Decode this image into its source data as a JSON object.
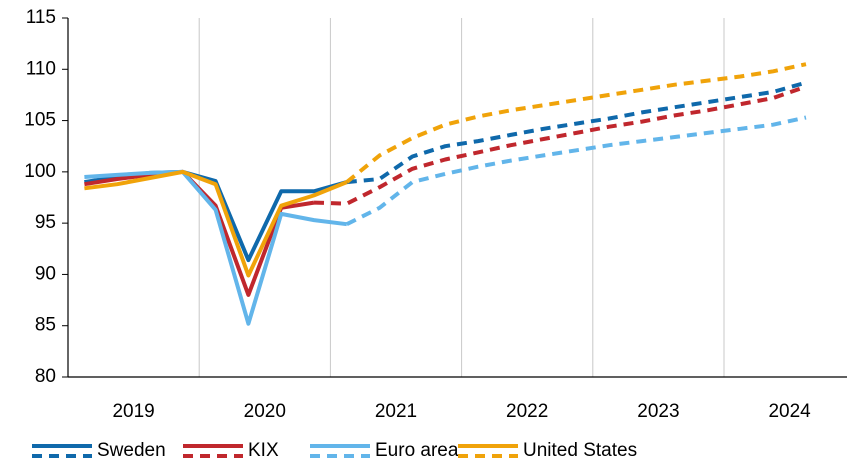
{
  "chart_data": {
    "type": "line",
    "categories": [
      null,
      null,
      null,
      null,
      null,
      null,
      null,
      null,
      null,
      null,
      null,
      null,
      null,
      null,
      null,
      null,
      null,
      null,
      null,
      null,
      null,
      null,
      null,
      null
    ],
    "year_labels": [
      "2019",
      "2020",
      "2021",
      "2022",
      "2023",
      "2024"
    ],
    "ylim": [
      80,
      115
    ],
    "yticks": [
      80,
      85,
      90,
      95,
      100,
      105,
      110,
      115
    ],
    "grid": "vertical",
    "legend": "bottom",
    "series": [
      {
        "name": "Sweden",
        "color": "#0f69ab",
        "values": [
          99.0,
          99.5,
          99.9,
          100.0,
          99.1,
          91.4,
          98.1,
          98.1,
          99.0,
          null,
          null,
          null,
          null,
          null,
          null,
          null,
          null,
          null,
          null,
          null,
          null,
          null,
          null,
          null
        ],
        "forecast": [
          null,
          null,
          null,
          null,
          null,
          null,
          null,
          null,
          99.0,
          99.3,
          101.5,
          102.5,
          103.0,
          103.6,
          104.2,
          104.7,
          105.2,
          105.8,
          106.3,
          106.8,
          107.3,
          107.8,
          108.7,
          null
        ]
      },
      {
        "name": "KIX",
        "color": "#c0272d",
        "values": [
          98.8,
          99.3,
          99.7,
          100.0,
          96.7,
          88.0,
          96.5,
          97.0,
          null,
          null,
          null,
          null,
          null,
          null,
          null,
          null,
          null,
          null,
          null,
          null,
          null,
          null,
          null,
          null
        ],
        "forecast": [
          null,
          null,
          null,
          null,
          null,
          null,
          null,
          97.0,
          96.9,
          98.5,
          100.3,
          101.2,
          101.9,
          102.6,
          103.2,
          103.8,
          104.4,
          104.9,
          105.5,
          106.0,
          106.6,
          107.2,
          108.3,
          null
        ]
      },
      {
        "name": "Euro area",
        "color": "#62b5ea",
        "values": [
          99.5,
          99.7,
          99.9,
          100.0,
          96.3,
          85.2,
          95.9,
          95.3,
          94.9,
          null,
          null,
          null,
          null,
          null,
          null,
          null,
          null,
          null,
          null,
          null,
          null,
          null,
          null,
          null
        ],
        "forecast": [
          null,
          null,
          null,
          null,
          null,
          null,
          null,
          null,
          94.9,
          96.5,
          99.0,
          99.8,
          100.5,
          101.1,
          101.6,
          102.1,
          102.6,
          103.0,
          103.4,
          103.8,
          104.2,
          104.6,
          105.3,
          null
        ]
      },
      {
        "name": "United States",
        "color": "#f0a30a",
        "values": [
          98.4,
          98.8,
          99.4,
          100.0,
          98.8,
          89.9,
          96.7,
          97.7,
          99.0,
          null,
          null,
          null,
          null,
          null,
          null,
          null,
          null,
          null,
          null,
          null,
          null,
          null,
          null,
          null
        ],
        "forecast": [
          null,
          null,
          null,
          null,
          null,
          null,
          null,
          null,
          99.0,
          101.6,
          103.3,
          104.6,
          105.4,
          106.0,
          106.5,
          107.0,
          107.5,
          108.0,
          108.5,
          108.9,
          109.3,
          109.8,
          110.5,
          null
        ]
      }
    ]
  }
}
